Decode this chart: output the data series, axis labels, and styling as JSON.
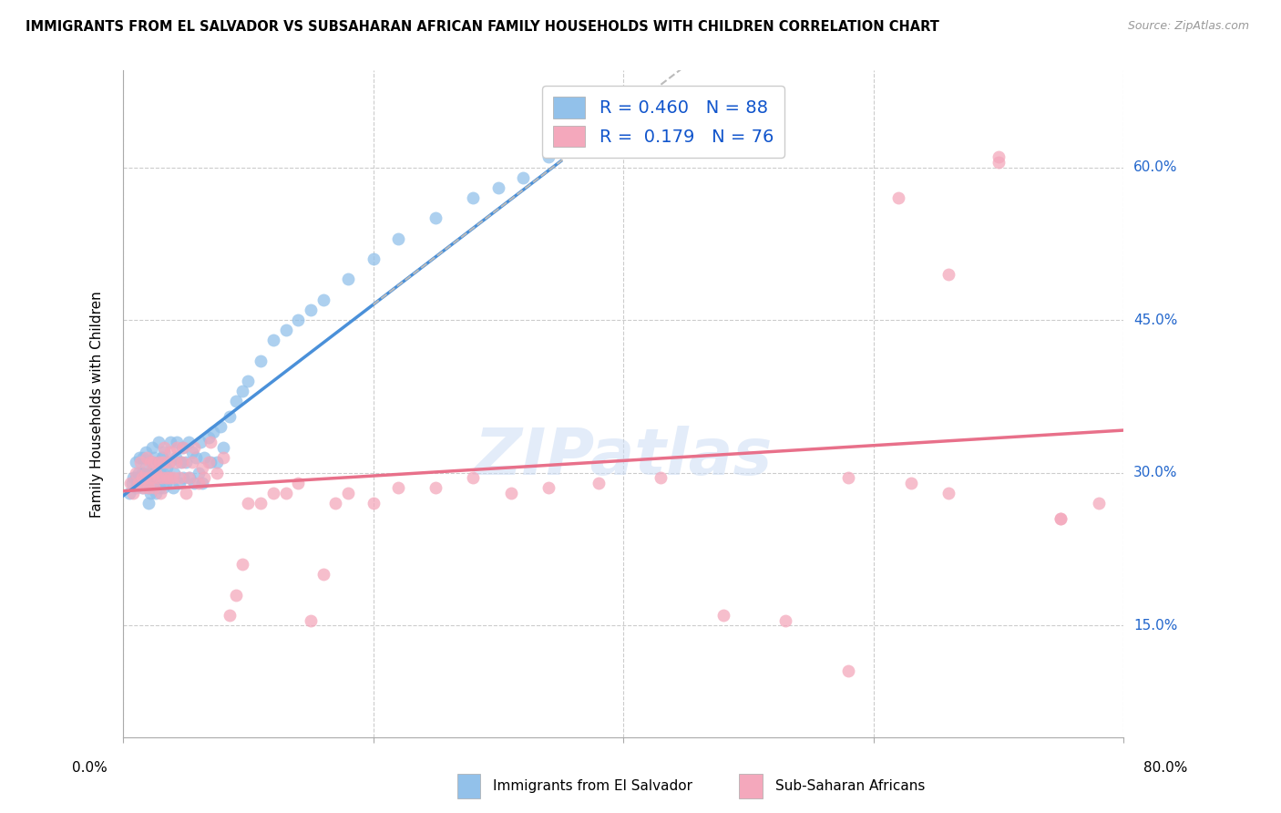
{
  "title": "IMMIGRANTS FROM EL SALVADOR VS SUBSAHARAN AFRICAN FAMILY HOUSEHOLDS WITH CHILDREN CORRELATION CHART",
  "source": "Source: ZipAtlas.com",
  "ylabel": "Family Households with Children",
  "ytick_labels": [
    "15.0%",
    "30.0%",
    "45.0%",
    "60.0%"
  ],
  "ytick_positions": [
    0.15,
    0.3,
    0.45,
    0.6
  ],
  "xmin": 0.0,
  "xmax": 0.8,
  "ymin": 0.04,
  "ymax": 0.695,
  "watermark": "ZIPatlas",
  "blue_color": "#92C1EA",
  "pink_color": "#F4A8BC",
  "blue_line_color": "#4A90D9",
  "pink_line_color": "#E8708A",
  "dashed_line_color": "#BBBBBB",
  "legend_label1": "Immigrants from El Salvador",
  "legend_label2": "Sub-Saharan Africans",
  "R1": 0.46,
  "N1": 88,
  "R2": 0.179,
  "N2": 76,
  "blue_x": [
    0.005,
    0.007,
    0.008,
    0.01,
    0.01,
    0.01,
    0.012,
    0.013,
    0.015,
    0.015,
    0.016,
    0.017,
    0.018,
    0.018,
    0.019,
    0.02,
    0.02,
    0.021,
    0.022,
    0.022,
    0.023,
    0.023,
    0.024,
    0.025,
    0.025,
    0.026,
    0.027,
    0.028,
    0.028,
    0.029,
    0.03,
    0.031,
    0.032,
    0.032,
    0.033,
    0.034,
    0.035,
    0.036,
    0.037,
    0.038,
    0.04,
    0.041,
    0.042,
    0.043,
    0.045,
    0.046,
    0.047,
    0.048,
    0.05,
    0.052,
    0.053,
    0.055,
    0.057,
    0.058,
    0.06,
    0.062,
    0.063,
    0.065,
    0.068,
    0.07,
    0.072,
    0.075,
    0.078,
    0.08,
    0.085,
    0.09,
    0.095,
    0.1,
    0.11,
    0.12,
    0.13,
    0.14,
    0.15,
    0.16,
    0.18,
    0.2,
    0.22,
    0.25,
    0.28,
    0.3,
    0.32,
    0.34,
    0.36,
    0.38,
    0.4,
    0.42,
    0.45,
    0.48
  ],
  "blue_y": [
    0.28,
    0.29,
    0.295,
    0.285,
    0.295,
    0.31,
    0.3,
    0.315,
    0.285,
    0.3,
    0.315,
    0.29,
    0.305,
    0.32,
    0.295,
    0.27,
    0.285,
    0.3,
    0.28,
    0.295,
    0.31,
    0.325,
    0.285,
    0.3,
    0.315,
    0.28,
    0.295,
    0.31,
    0.33,
    0.285,
    0.3,
    0.315,
    0.285,
    0.3,
    0.32,
    0.29,
    0.305,
    0.295,
    0.31,
    0.33,
    0.285,
    0.3,
    0.315,
    0.33,
    0.29,
    0.31,
    0.325,
    0.295,
    0.31,
    0.33,
    0.295,
    0.32,
    0.29,
    0.315,
    0.3,
    0.33,
    0.29,
    0.315,
    0.335,
    0.31,
    0.34,
    0.31,
    0.345,
    0.325,
    0.355,
    0.37,
    0.38,
    0.39,
    0.41,
    0.43,
    0.44,
    0.45,
    0.46,
    0.47,
    0.49,
    0.51,
    0.53,
    0.55,
    0.57,
    0.58,
    0.59,
    0.61,
    0.62,
    0.63,
    0.64,
    0.65,
    0.65,
    0.66
  ],
  "pink_x": [
    0.006,
    0.008,
    0.01,
    0.012,
    0.014,
    0.015,
    0.016,
    0.018,
    0.019,
    0.02,
    0.02,
    0.022,
    0.023,
    0.024,
    0.025,
    0.026,
    0.028,
    0.029,
    0.03,
    0.031,
    0.032,
    0.033,
    0.035,
    0.036,
    0.037,
    0.038,
    0.04,
    0.042,
    0.043,
    0.045,
    0.047,
    0.048,
    0.05,
    0.052,
    0.055,
    0.057,
    0.06,
    0.063,
    0.065,
    0.068,
    0.07,
    0.075,
    0.08,
    0.085,
    0.09,
    0.095,
    0.1,
    0.11,
    0.12,
    0.13,
    0.14,
    0.15,
    0.16,
    0.17,
    0.18,
    0.2,
    0.22,
    0.25,
    0.28,
    0.31,
    0.34,
    0.38,
    0.43,
    0.48,
    0.53,
    0.58,
    0.62,
    0.66,
    0.7,
    0.75,
    0.58,
    0.63,
    0.66,
    0.7,
    0.75,
    0.78
  ],
  "pink_y": [
    0.29,
    0.28,
    0.3,
    0.29,
    0.31,
    0.295,
    0.285,
    0.3,
    0.315,
    0.285,
    0.295,
    0.31,
    0.295,
    0.31,
    0.285,
    0.3,
    0.295,
    0.31,
    0.28,
    0.295,
    0.31,
    0.325,
    0.295,
    0.31,
    0.295,
    0.32,
    0.295,
    0.31,
    0.325,
    0.295,
    0.31,
    0.325,
    0.28,
    0.295,
    0.31,
    0.325,
    0.29,
    0.305,
    0.295,
    0.31,
    0.33,
    0.3,
    0.315,
    0.16,
    0.18,
    0.21,
    0.27,
    0.27,
    0.28,
    0.28,
    0.29,
    0.155,
    0.2,
    0.27,
    0.28,
    0.27,
    0.285,
    0.285,
    0.295,
    0.28,
    0.285,
    0.29,
    0.295,
    0.16,
    0.155,
    0.295,
    0.57,
    0.28,
    0.61,
    0.255,
    0.105,
    0.29,
    0.495,
    0.605,
    0.255,
    0.27
  ]
}
